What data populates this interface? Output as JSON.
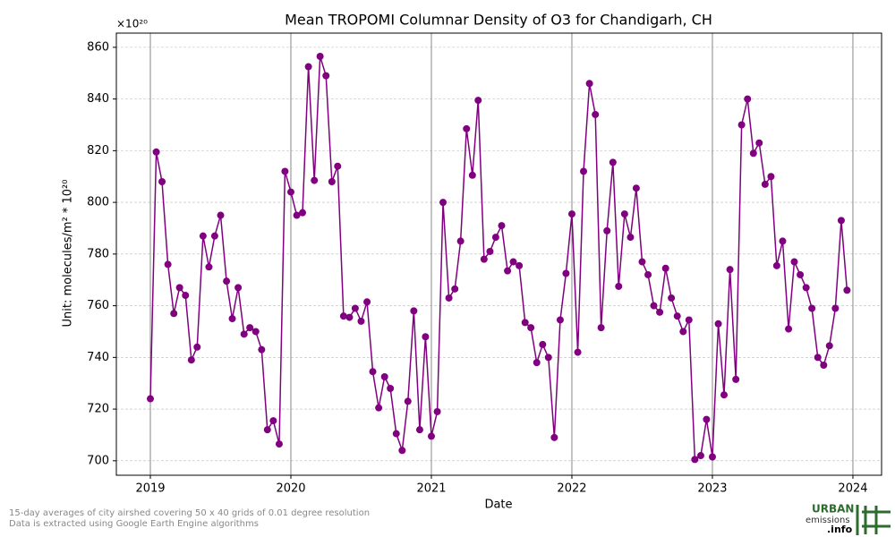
{
  "chart_data": {
    "type": "line",
    "title": "Mean TROPOMI Columnar Density of O3 for Chandigarh, CH",
    "xlabel": "Date",
    "ylabel": "Unit: molecules/m² * 10²⁰",
    "y_offset_label": "×10²⁰",
    "x": [
      2019,
      2019.042,
      2019.083,
      2019.125,
      2019.167,
      2019.208,
      2019.25,
      2019.292,
      2019.333,
      2019.375,
      2019.417,
      2019.458,
      2019.5,
      2019.542,
      2019.583,
      2019.625,
      2019.667,
      2019.708,
      2019.75,
      2019.792,
      2019.833,
      2019.875,
      2019.917,
      2019.958,
      2020,
      2020.042,
      2020.083,
      2020.125,
      2020.167,
      2020.208,
      2020.25,
      2020.292,
      2020.333,
      2020.375,
      2020.417,
      2020.458,
      2020.5,
      2020.542,
      2020.583,
      2020.625,
      2020.667,
      2020.708,
      2020.75,
      2020.792,
      2020.833,
      2020.875,
      2020.917,
      2020.958,
      2021,
      2021.042,
      2021.083,
      2021.125,
      2021.167,
      2021.208,
      2021.25,
      2021.292,
      2021.333,
      2021.375,
      2021.417,
      2021.458,
      2021.5,
      2021.542,
      2021.583,
      2021.625,
      2021.667,
      2021.708,
      2021.75,
      2021.792,
      2021.833,
      2021.875,
      2021.917,
      2021.958,
      2022,
      2022.042,
      2022.083,
      2022.125,
      2022.167,
      2022.208,
      2022.25,
      2022.292,
      2022.333,
      2022.375,
      2022.417,
      2022.458,
      2022.5,
      2022.542,
      2022.583,
      2022.625,
      2022.667,
      2022.708,
      2022.75,
      2022.792,
      2022.833,
      2022.875,
      2022.917,
      2022.958,
      2023,
      2023.042,
      2023.083,
      2023.125,
      2023.167,
      2023.208,
      2023.25,
      2023.292,
      2023.333,
      2023.375,
      2023.417,
      2023.458,
      2023.5,
      2023.542,
      2023.583,
      2023.625,
      2023.667,
      2023.708,
      2023.75,
      2023.792,
      2023.833,
      2023.875,
      2023.917,
      2023.958
    ],
    "series": [
      {
        "name": "O3",
        "color": "#800080",
        "values": [
          724,
          819.5,
          808,
          776,
          757,
          767,
          764,
          739,
          744,
          787,
          775,
          787,
          795,
          769.5,
          755,
          767,
          749,
          751.5,
          750,
          743,
          712,
          715.5,
          706.5,
          812,
          804,
          795,
          796,
          852.5,
          808.5,
          856.5,
          849,
          808,
          814,
          756,
          755.5,
          759,
          754,
          761.5,
          734.5,
          720.5,
          732.5,
          728,
          710.5,
          704,
          723,
          758,
          712,
          748,
          709.5,
          719,
          800,
          763,
          766.5,
          785,
          828.5,
          810.5,
          839.5,
          778,
          781,
          786.5,
          791,
          773.5,
          777,
          775.5,
          753.5,
          751.5,
          738,
          745,
          740,
          709,
          754.5,
          772.5,
          795.5,
          742,
          812,
          846,
          834,
          751.5,
          789,
          815.5,
          767.5,
          795.5,
          786.5,
          805.5,
          777,
          772,
          760,
          757.5,
          774.5,
          763,
          756,
          750,
          754.5,
          700.5,
          702,
          716,
          701.5,
          753,
          725.5,
          774,
          731.5,
          830,
          840,
          819,
          823,
          807,
          810,
          775.5,
          785,
          751,
          777,
          772,
          767,
          759,
          740,
          737,
          744.5,
          759,
          793,
          766
        ]
      }
    ],
    "xlim": [
      2018.758,
      2024.204
    ],
    "xticks": [
      2019,
      2020,
      2021,
      2022,
      2023,
      2024
    ],
    "ylim": [
      694.4,
      865.5
    ],
    "yticks": [
      700,
      720,
      740,
      760,
      780,
      800,
      820,
      840,
      860
    ],
    "grid": true
  },
  "footnote": [
    "15-day averages of city airshed covering 50 x 40 grids of 0.01 degree resolution",
    "Data is extracted using Google Earth Engine algorithms"
  ],
  "logo": {
    "line1": "URBAN",
    "line2": "emissions",
    "line3": ".info"
  }
}
